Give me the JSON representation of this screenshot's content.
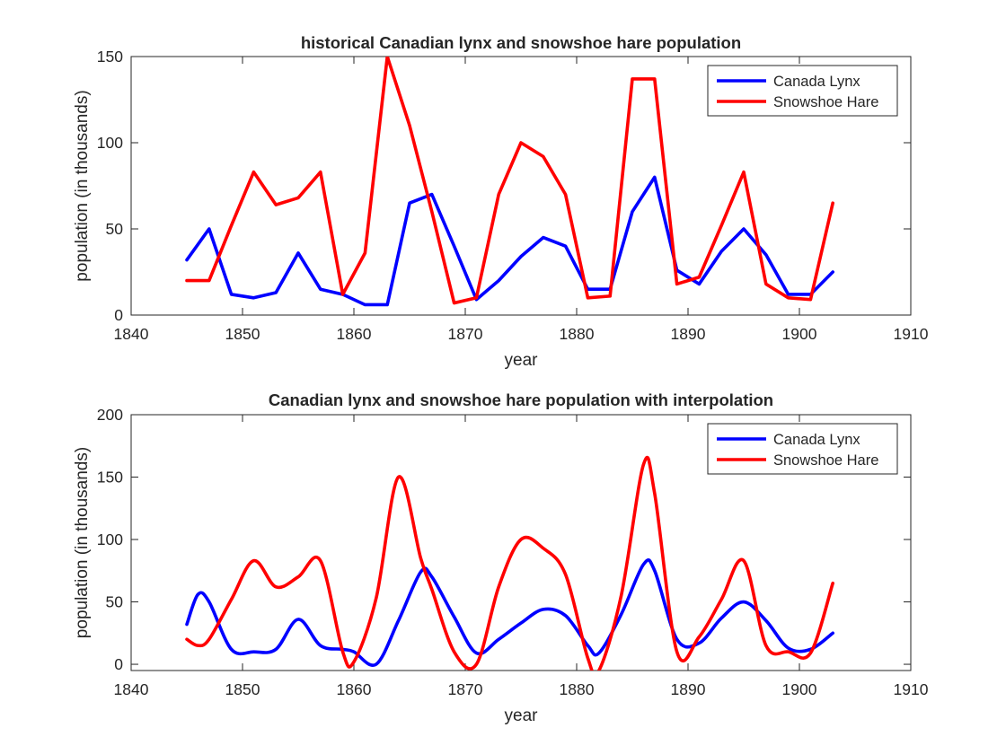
{
  "chart_data": [
    {
      "type": "line",
      "title": "historical Canadian lynx and snowshoe hare population",
      "xlabel": "year",
      "ylabel": "population (in thousands)",
      "xlim": [
        1840,
        1910
      ],
      "ylim": [
        0,
        150
      ],
      "xticks": [
        1840,
        1850,
        1860,
        1870,
        1880,
        1890,
        1900,
        1910
      ],
      "yticks": [
        0,
        50,
        100,
        150
      ],
      "legend": "top-right",
      "x": [
        1845,
        1847,
        1849,
        1851,
        1853,
        1855,
        1857,
        1859,
        1861,
        1863,
        1865,
        1867,
        1869,
        1871,
        1873,
        1875,
        1877,
        1879,
        1881,
        1883,
        1885,
        1887,
        1889,
        1891,
        1893,
        1895,
        1897,
        1899,
        1901,
        1903
      ],
      "series": [
        {
          "name": "Canada Lynx",
          "color": "#0000ff",
          "values": [
            32,
            50,
            12,
            10,
            13,
            36,
            15,
            12,
            6,
            6,
            65,
            70,
            40,
            9,
            20,
            34,
            45,
            40,
            15,
            15,
            60,
            80,
            26,
            18,
            37,
            50,
            35,
            12,
            12,
            25
          ]
        },
        {
          "name": "Snowshoe Hare",
          "color": "#ff0000",
          "values": [
            20,
            20,
            52,
            83,
            64,
            68,
            83,
            12,
            36,
            150,
            110,
            60,
            7,
            10,
            70,
            100,
            92,
            70,
            10,
            11,
            137,
            137,
            18,
            22,
            52,
            83,
            18,
            10,
            9,
            65
          ]
        }
      ]
    },
    {
      "type": "line",
      "title": "Canadian lynx and snowshoe hare population with interpolation",
      "xlabel": "year",
      "ylabel": "population (in thousands)",
      "xlim": [
        1840,
        1910
      ],
      "ylim": [
        -5,
        200
      ],
      "xticks": [
        1840,
        1850,
        1860,
        1870,
        1880,
        1890,
        1900,
        1910
      ],
      "yticks": [
        0,
        50,
        100,
        150,
        200
      ],
      "legend": "top-right",
      "smooth": true,
      "x": [
        1845,
        1846,
        1847,
        1849,
        1851,
        1853,
        1855,
        1857,
        1859,
        1860,
        1862,
        1864,
        1866,
        1867,
        1869,
        1871,
        1873,
        1875,
        1877,
        1879,
        1881,
        1882,
        1884,
        1886,
        1887,
        1889,
        1891,
        1893,
        1895,
        1897,
        1899,
        1901,
        1903
      ],
      "series": [
        {
          "name": "Canada Lynx",
          "color": "#0000ff",
          "values": [
            32,
            56,
            50,
            12,
            10,
            12,
            36,
            15,
            12,
            10,
            0,
            35,
            74,
            70,
            38,
            9,
            20,
            33,
            44,
            39,
            15,
            9,
            40,
            80,
            75,
            20,
            17,
            37,
            50,
            35,
            13,
            12,
            25
          ]
        },
        {
          "name": "Snowshoe Hare",
          "color": "#ff0000",
          "values": [
            20,
            15,
            20,
            52,
            83,
            62,
            70,
            83,
            10,
            2,
            53,
            150,
            85,
            60,
            10,
            0,
            62,
            100,
            93,
            72,
            5,
            -5,
            55,
            160,
            137,
            10,
            22,
            52,
            83,
            15,
            10,
            9,
            65
          ]
        }
      ]
    }
  ]
}
